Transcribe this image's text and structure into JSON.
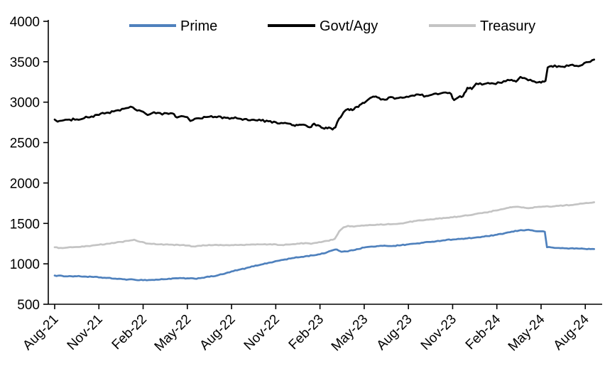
{
  "chart_data": {
    "type": "line",
    "title": "",
    "xlabel": "",
    "ylabel": "",
    "x_unit": "months since Aug-21",
    "xlim": [
      0,
      37
    ],
    "ylim": [
      500,
      4000
    ],
    "grid": false,
    "legend_position": "top",
    "axis_color": "#000000",
    "y_ticks": [
      500,
      1000,
      1500,
      2000,
      2500,
      3000,
      3500,
      4000
    ],
    "x_tick_positions": [
      0,
      3,
      6,
      9,
      12,
      15,
      18,
      21,
      24,
      27,
      30,
      33,
      36
    ],
    "x_tick_labels": [
      "Aug-21",
      "Nov-21",
      "Feb-22",
      "May-22",
      "Aug-22",
      "Nov-22",
      "Feb-23",
      "May-23",
      "Aug-23",
      "Nov-23",
      "Feb-24",
      "May-24",
      "Aug-24"
    ],
    "series": [
      {
        "name": "Prime",
        "color": "#4f81bd",
        "points": [
          [
            0,
            855
          ],
          [
            0.5,
            850
          ],
          [
            1,
            848
          ],
          [
            1.5,
            846
          ],
          [
            2,
            843
          ],
          [
            2.5,
            838
          ],
          [
            3,
            833
          ],
          [
            3.5,
            825
          ],
          [
            4,
            818
          ],
          [
            4.5,
            812
          ],
          [
            5,
            806
          ],
          [
            5.5,
            802
          ],
          [
            6,
            799
          ],
          [
            6.5,
            800
          ],
          [
            7,
            804
          ],
          [
            7.5,
            811
          ],
          [
            8,
            818
          ],
          [
            8.5,
            823
          ],
          [
            9,
            820
          ],
          [
            9.5,
            816
          ],
          [
            10,
            828
          ],
          [
            10.5,
            840
          ],
          [
            11,
            855
          ],
          [
            11.5,
            876
          ],
          [
            12,
            905
          ],
          [
            12.5,
            926
          ],
          [
            13,
            947
          ],
          [
            13.5,
            970
          ],
          [
            14,
            992
          ],
          [
            14.5,
            1012
          ],
          [
            15,
            1032
          ],
          [
            15.5,
            1050
          ],
          [
            16,
            1066
          ],
          [
            16.5,
            1080
          ],
          [
            17,
            1093
          ],
          [
            17.5,
            1105
          ],
          [
            18,
            1117
          ],
          [
            18.5,
            1145
          ],
          [
            18.9,
            1172
          ],
          [
            19.15,
            1178
          ],
          [
            19.45,
            1148
          ],
          [
            20,
            1160
          ],
          [
            20.5,
            1182
          ],
          [
            21,
            1202
          ],
          [
            21.5,
            1213
          ],
          [
            22,
            1219
          ],
          [
            22.5,
            1223
          ],
          [
            23,
            1222
          ],
          [
            23.5,
            1231
          ],
          [
            24,
            1241
          ],
          [
            24.5,
            1251
          ],
          [
            25,
            1261
          ],
          [
            25.5,
            1272
          ],
          [
            26,
            1283
          ],
          [
            26.5,
            1293
          ],
          [
            27,
            1302
          ],
          [
            27.5,
            1307
          ],
          [
            28,
            1314
          ],
          [
            28.5,
            1324
          ],
          [
            29,
            1334
          ],
          [
            29.5,
            1345
          ],
          [
            30,
            1358
          ],
          [
            30.5,
            1377
          ],
          [
            31,
            1396
          ],
          [
            31.5,
            1412
          ],
          [
            32,
            1420
          ],
          [
            32.3,
            1416
          ],
          [
            32.6,
            1406
          ],
          [
            33,
            1401
          ],
          [
            33.25,
            1398
          ],
          [
            33.4,
            1206
          ],
          [
            33.8,
            1200
          ],
          [
            34.2,
            1196
          ],
          [
            34.6,
            1193
          ],
          [
            35,
            1191
          ],
          [
            35.5,
            1189
          ],
          [
            36,
            1186
          ],
          [
            36.6,
            1181
          ]
        ]
      },
      {
        "name": "Govt/Agy",
        "color": "#000000",
        "points": [
          [
            0,
            2785
          ],
          [
            0.2,
            2762
          ],
          [
            0.5,
            2772
          ],
          [
            1,
            2780
          ],
          [
            1.5,
            2792
          ],
          [
            2,
            2804
          ],
          [
            2.5,
            2822
          ],
          [
            3,
            2844
          ],
          [
            3.5,
            2868
          ],
          [
            4,
            2885
          ],
          [
            4.3,
            2900
          ],
          [
            4.7,
            2915
          ],
          [
            5,
            2928
          ],
          [
            5.3,
            2938
          ],
          [
            5.6,
            2896
          ],
          [
            6,
            2884
          ],
          [
            6.3,
            2840
          ],
          [
            6.6,
            2860
          ],
          [
            7,
            2870
          ],
          [
            7.3,
            2846
          ],
          [
            7.6,
            2864
          ],
          [
            8,
            2860
          ],
          [
            8.3,
            2806
          ],
          [
            8.6,
            2830
          ],
          [
            9,
            2814
          ],
          [
            9.2,
            2770
          ],
          [
            9.5,
            2790
          ],
          [
            10,
            2802
          ],
          [
            10.5,
            2820
          ],
          [
            11,
            2814
          ],
          [
            11.5,
            2810
          ],
          [
            12,
            2804
          ],
          [
            12.5,
            2796
          ],
          [
            13,
            2790
          ],
          [
            13.5,
            2780
          ],
          [
            14,
            2774
          ],
          [
            14.5,
            2760
          ],
          [
            15,
            2750
          ],
          [
            15.5,
            2737
          ],
          [
            16,
            2730
          ],
          [
            16.3,
            2704
          ],
          [
            16.6,
            2724
          ],
          [
            17,
            2714
          ],
          [
            17.3,
            2684
          ],
          [
            17.6,
            2730
          ],
          [
            18,
            2707
          ],
          [
            18.3,
            2670
          ],
          [
            18.6,
            2684
          ],
          [
            18.85,
            2660
          ],
          [
            19.05,
            2690
          ],
          [
            19.3,
            2800
          ],
          [
            19.6,
            2872
          ],
          [
            19.9,
            2912
          ],
          [
            20.2,
            2902
          ],
          [
            20.5,
            2940
          ],
          [
            20.8,
            2972
          ],
          [
            21.1,
            3010
          ],
          [
            21.4,
            3052
          ],
          [
            21.7,
            3062
          ],
          [
            22,
            3050
          ],
          [
            22.4,
            3030
          ],
          [
            22.8,
            3060
          ],
          [
            23.2,
            3044
          ],
          [
            23.6,
            3054
          ],
          [
            24,
            3064
          ],
          [
            24.4,
            3080
          ],
          [
            24.8,
            3090
          ],
          [
            25.2,
            3074
          ],
          [
            25.6,
            3090
          ],
          [
            26,
            3100
          ],
          [
            26.4,
            3114
          ],
          [
            26.8,
            3120
          ],
          [
            27.1,
            3024
          ],
          [
            27.4,
            3058
          ],
          [
            27.7,
            3072
          ],
          [
            28,
            3180
          ],
          [
            28.3,
            3160
          ],
          [
            28.6,
            3230
          ],
          [
            29,
            3218
          ],
          [
            29.4,
            3240
          ],
          [
            29.8,
            3230
          ],
          [
            30.2,
            3244
          ],
          [
            30.6,
            3264
          ],
          [
            31,
            3274
          ],
          [
            31.3,
            3254
          ],
          [
            31.6,
            3310
          ],
          [
            32,
            3284
          ],
          [
            32.4,
            3260
          ],
          [
            32.8,
            3242
          ],
          [
            33.1,
            3254
          ],
          [
            33.3,
            3264
          ],
          [
            33.45,
            3428
          ],
          [
            33.8,
            3442
          ],
          [
            34.2,
            3450
          ],
          [
            34.6,
            3440
          ],
          [
            35,
            3456
          ],
          [
            35.4,
            3450
          ],
          [
            35.8,
            3466
          ],
          [
            36.2,
            3492
          ],
          [
            36.6,
            3522
          ]
        ]
      },
      {
        "name": "Treasury",
        "color": "#c4c4c4",
        "points": [
          [
            0,
            1205
          ],
          [
            0.4,
            1196
          ],
          [
            0.8,
            1199
          ],
          [
            1.2,
            1203
          ],
          [
            1.6,
            1207
          ],
          [
            2,
            1213
          ],
          [
            2.5,
            1223
          ],
          [
            3,
            1236
          ],
          [
            3.5,
            1246
          ],
          [
            4,
            1258
          ],
          [
            4.5,
            1270
          ],
          [
            5,
            1284
          ],
          [
            5.4,
            1298
          ],
          [
            5.8,
            1274
          ],
          [
            6.2,
            1254
          ],
          [
            6.6,
            1246
          ],
          [
            7,
            1241
          ],
          [
            7.5,
            1239
          ],
          [
            8,
            1236
          ],
          [
            8.5,
            1231
          ],
          [
            9,
            1227
          ],
          [
            9.4,
            1213
          ],
          [
            9.8,
            1223
          ],
          [
            10.2,
            1227
          ],
          [
            10.6,
            1231
          ],
          [
            11,
            1233
          ],
          [
            11.5,
            1229
          ],
          [
            12,
            1231
          ],
          [
            12.5,
            1235
          ],
          [
            13,
            1237
          ],
          [
            13.5,
            1239
          ],
          [
            14,
            1241
          ],
          [
            14.5,
            1239
          ],
          [
            15,
            1241
          ],
          [
            15.4,
            1231
          ],
          [
            15.8,
            1239
          ],
          [
            16.2,
            1243
          ],
          [
            16.6,
            1251
          ],
          [
            17,
            1257
          ],
          [
            17.4,
            1247
          ],
          [
            17.8,
            1261
          ],
          [
            18.2,
            1273
          ],
          [
            18.6,
            1286
          ],
          [
            19,
            1310
          ],
          [
            19.3,
            1400
          ],
          [
            19.6,
            1452
          ],
          [
            19.9,
            1468
          ],
          [
            20.3,
            1460
          ],
          [
            20.7,
            1468
          ],
          [
            21.1,
            1476
          ],
          [
            21.5,
            1481
          ],
          [
            22,
            1485
          ],
          [
            22.5,
            1489
          ],
          [
            23,
            1493
          ],
          [
            23.5,
            1501
          ],
          [
            24,
            1516
          ],
          [
            24.5,
            1529
          ],
          [
            25,
            1539
          ],
          [
            25.5,
            1549
          ],
          [
            26,
            1559
          ],
          [
            26.5,
            1567
          ],
          [
            27,
            1577
          ],
          [
            27.5,
            1587
          ],
          [
            28,
            1600
          ],
          [
            28.5,
            1614
          ],
          [
            29,
            1628
          ],
          [
            29.5,
            1644
          ],
          [
            30,
            1662
          ],
          [
            30.4,
            1678
          ],
          [
            30.8,
            1694
          ],
          [
            31.1,
            1702
          ],
          [
            31.4,
            1706
          ],
          [
            31.7,
            1696
          ],
          [
            32,
            1690
          ],
          [
            32.3,
            1693
          ],
          [
            32.7,
            1701
          ],
          [
            33,
            1706
          ],
          [
            33.4,
            1711
          ],
          [
            33.8,
            1709
          ],
          [
            34.2,
            1716
          ],
          [
            34.6,
            1723
          ],
          [
            35,
            1729
          ],
          [
            35.4,
            1736
          ],
          [
            35.8,
            1744
          ],
          [
            36.2,
            1753
          ],
          [
            36.6,
            1763
          ]
        ]
      }
    ]
  }
}
